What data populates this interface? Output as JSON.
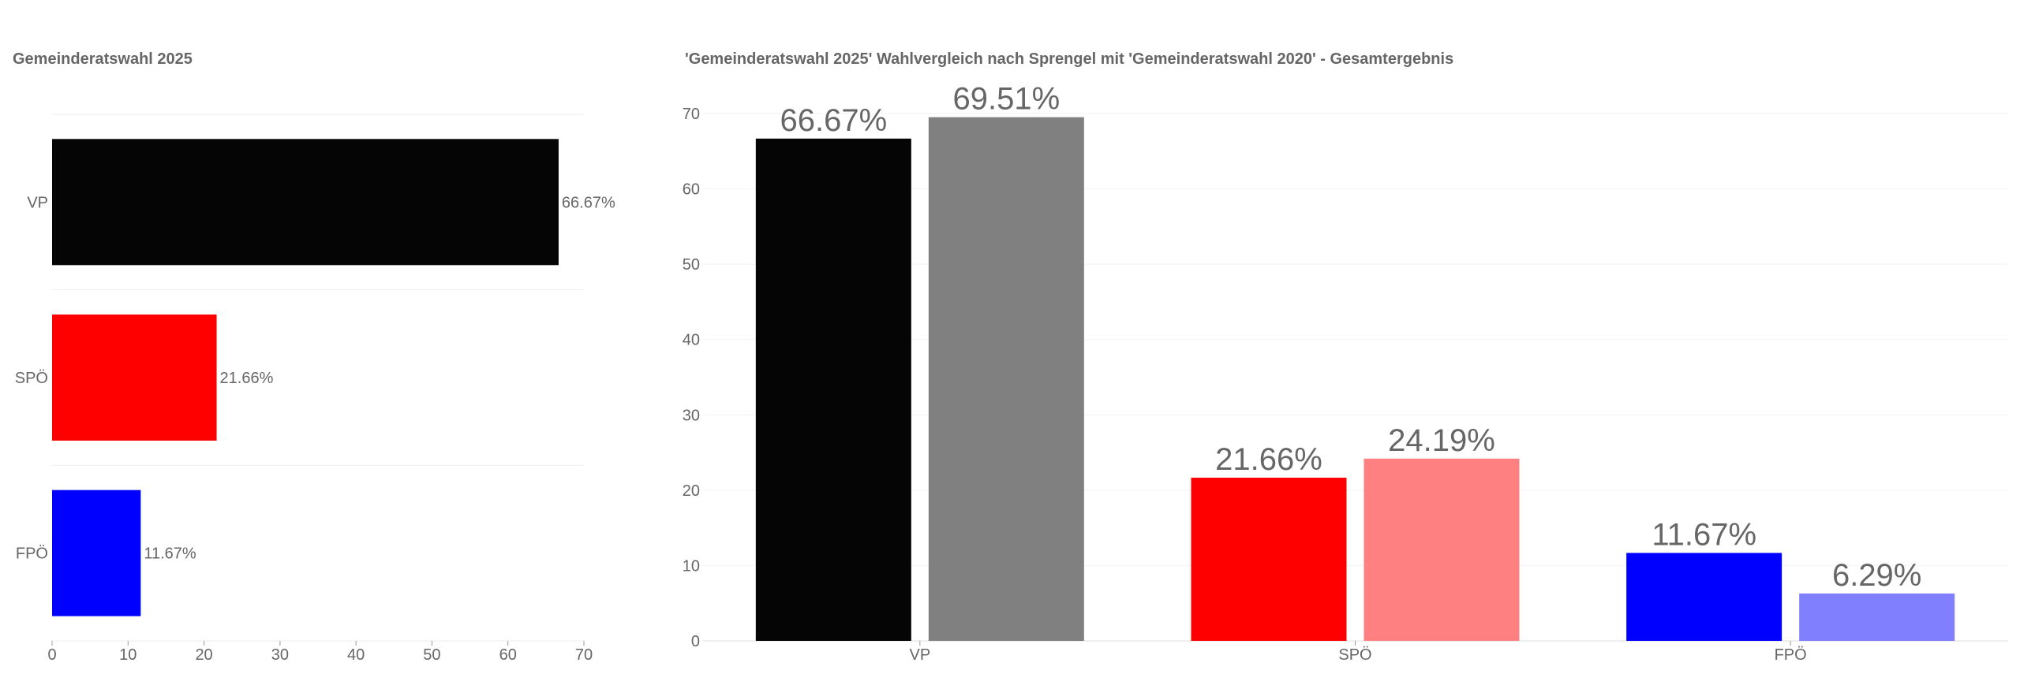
{
  "chart_data": [
    {
      "type": "bar",
      "orientation": "horizontal",
      "title": "Gemeinderatswahl 2025",
      "categories": [
        "VP",
        "SPÖ",
        "FPÖ"
      ],
      "values": [
        66.67,
        21.66,
        11.67
      ],
      "value_labels": [
        "66.67%",
        "21.66%",
        "11.67%"
      ],
      "colors": [
        "#050505",
        "#ff0000",
        "#0000ff"
      ],
      "xlim": [
        0,
        70
      ],
      "xticks": [
        0,
        10,
        20,
        30,
        40,
        50,
        60,
        70
      ],
      "grid": true
    },
    {
      "type": "bar",
      "title": "'Gemeinderatswahl 2025' Wahlvergleich nach Sprengel mit 'Gemeinderatswahl 2020' - Gesamtergebnis",
      "categories": [
        "VP",
        "SPÖ",
        "FPÖ"
      ],
      "series": [
        {
          "values": [
            66.67,
            21.66,
            11.67
          ],
          "value_labels": [
            "66.67%",
            "21.66%",
            "11.67%"
          ],
          "colors": [
            "#050505",
            "#ff0000",
            "#0000ff"
          ]
        },
        {
          "values": [
            69.51,
            24.19,
            6.29
          ],
          "value_labels": [
            "69.51%",
            "24.19%",
            "6.29%"
          ],
          "colors": [
            "#808080",
            "#ff8080",
            "#8080ff"
          ]
        }
      ],
      "ylim": [
        0,
        70
      ],
      "yticks": [
        0,
        10,
        20,
        30,
        40,
        50,
        60,
        70
      ],
      "grid": true
    }
  ]
}
